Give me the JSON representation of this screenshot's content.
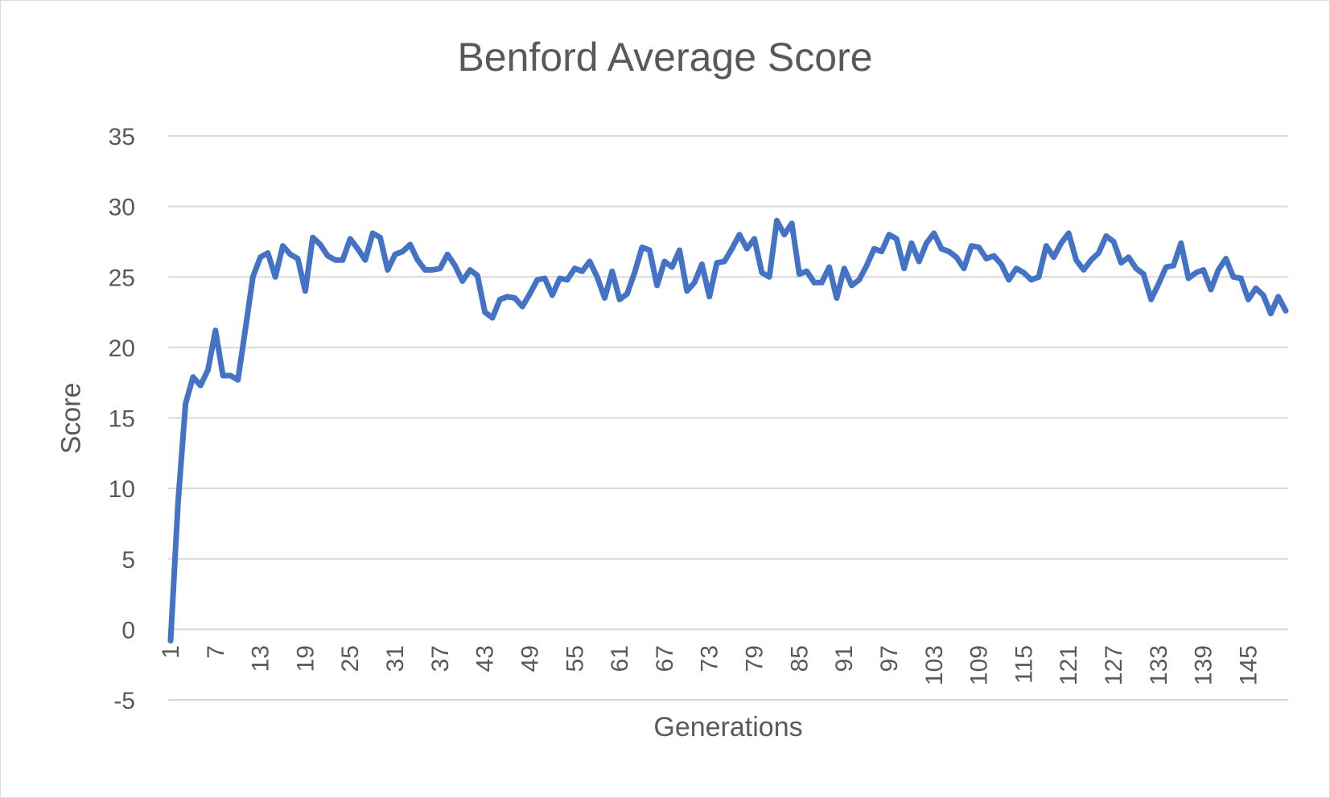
{
  "chart_data": {
    "type": "line",
    "title": "Benford Average Score",
    "xlabel": "Generations",
    "ylabel": "Score",
    "ylim": [
      -5,
      35
    ],
    "yticks": [
      "35",
      "30",
      "25",
      "20",
      "15",
      "10",
      "5",
      "0",
      "-5"
    ],
    "grid": true,
    "legend": "none",
    "line_color": "#4472c4",
    "x_tick_labels": [
      "1",
      "7",
      "13",
      "19",
      "25",
      "31",
      "37",
      "43",
      "49",
      "55",
      "61",
      "67",
      "73",
      "79",
      "85",
      "91",
      "97",
      "103",
      "109",
      "115",
      "121",
      "127",
      "133",
      "139",
      "145"
    ],
    "series": [
      {
        "values": [
          -0.8,
          9.0,
          16.0,
          17.9,
          17.3,
          18.4,
          21.2,
          18.0,
          18.0,
          17.7,
          21.3,
          25.0,
          26.4,
          26.7,
          25.0,
          27.2,
          26.6,
          26.3,
          24.0,
          27.8,
          27.3,
          26.5,
          26.2,
          26.2,
          27.7,
          27.0,
          26.2,
          28.1,
          27.8,
          25.5,
          26.6,
          26.8,
          27.3,
          26.2,
          25.5,
          25.5,
          25.6,
          26.6,
          25.8,
          24.7,
          25.5,
          25.1,
          22.5,
          22.1,
          23.4,
          23.6,
          23.5,
          22.9,
          23.8,
          24.8,
          24.9,
          23.7,
          24.9,
          24.8,
          25.6,
          25.4,
          26.1,
          25.0,
          23.5,
          25.4,
          23.4,
          23.8,
          25.3,
          27.1,
          26.9,
          24.4,
          26.1,
          25.7,
          26.9,
          24.0,
          24.6,
          25.9,
          23.6,
          26.0,
          26.1,
          27.0,
          28.0,
          27.0,
          27.7,
          25.3,
          25.0,
          29.0,
          28.0,
          28.8,
          25.2,
          25.4,
          24.6,
          24.6,
          25.7,
          23.5,
          25.6,
          24.4,
          24.8,
          25.8,
          27.0,
          26.8,
          28.0,
          27.7,
          25.6,
          27.4,
          26.1,
          27.4,
          28.1,
          27.0,
          26.8,
          26.4,
          25.6,
          27.2,
          27.1,
          26.3,
          26.5,
          25.9,
          24.8,
          25.6,
          25.3,
          24.8,
          25.0,
          27.2,
          26.4,
          27.4,
          28.1,
          26.2,
          25.5,
          26.2,
          26.7,
          27.9,
          27.5,
          26.0,
          26.4,
          25.6,
          25.2,
          23.4,
          24.5,
          25.7,
          25.8,
          27.4,
          24.9,
          25.3,
          25.5,
          24.1,
          25.5,
          26.3,
          25.0,
          24.9,
          23.4,
          24.2,
          23.7,
          22.4,
          23.6,
          22.6
        ]
      }
    ]
  }
}
